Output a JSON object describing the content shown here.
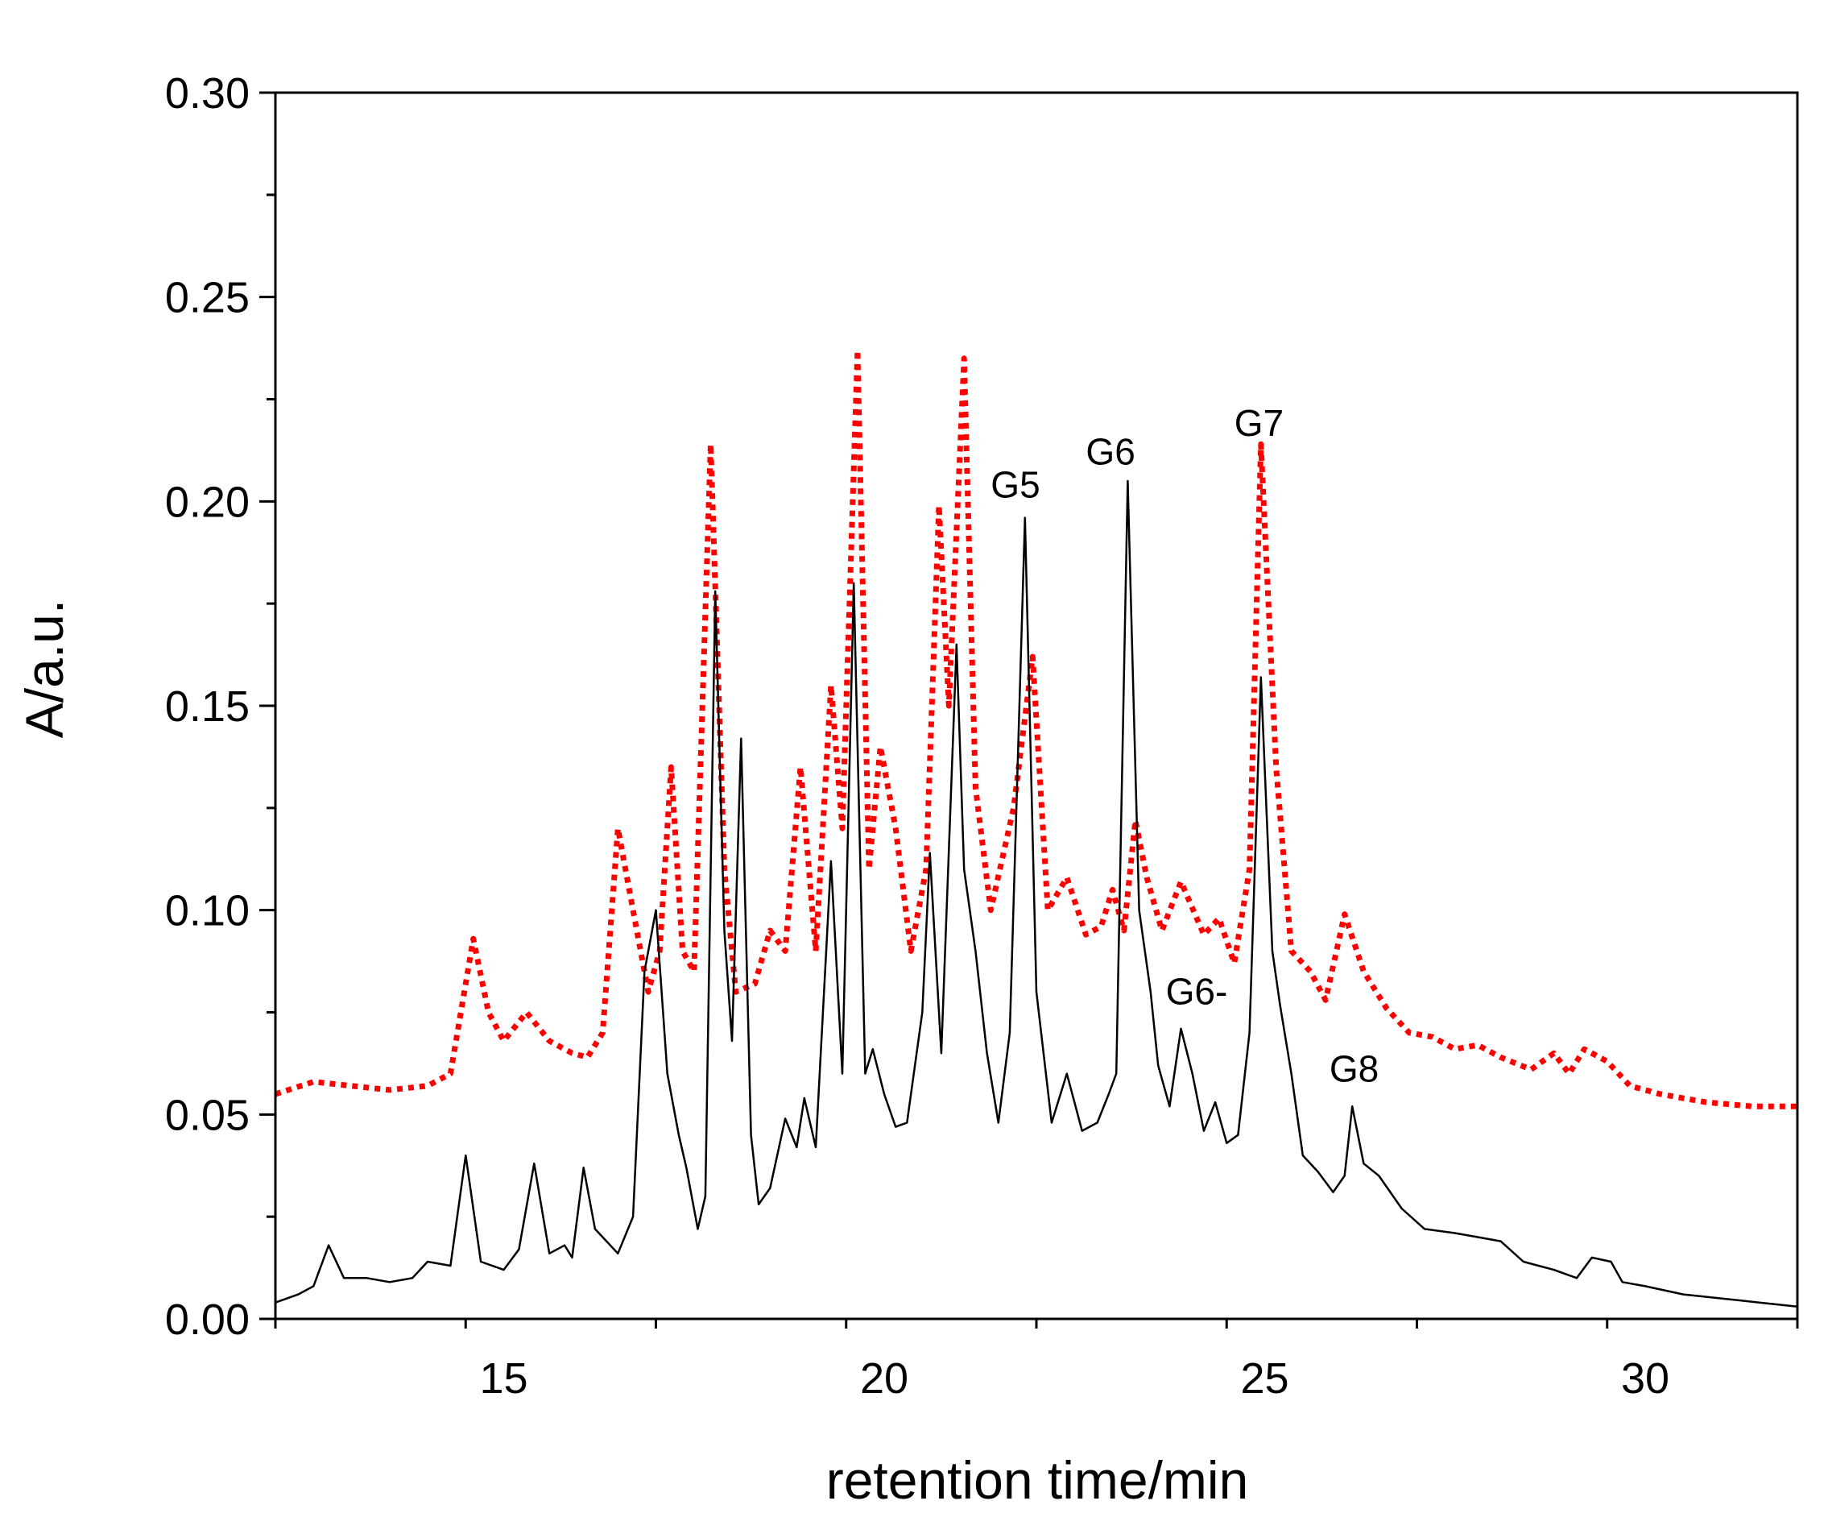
{
  "chart_data": {
    "type": "line",
    "title": "",
    "xlabel": "retention time/min",
    "ylabel": "A/a.u.",
    "xlim": [
      12,
      32
    ],
    "ylim": [
      0,
      0.3
    ],
    "x_ticks": [
      15,
      20,
      25,
      30
    ],
    "x_tick_labels": [
      "15",
      "20",
      "25",
      "30"
    ],
    "y_ticks": [
      0,
      0.05,
      0.1,
      0.15,
      0.2,
      0.25,
      0.3
    ],
    "y_tick_labels": [
      "0.00",
      "0.05",
      "0.10",
      "0.15",
      "0.20",
      "0.25",
      "0.30"
    ],
    "grid": false,
    "legend": "none",
    "series": [
      {
        "name": "black solid",
        "color": "#000000",
        "style": "solid",
        "points": [
          [
            12.0,
            0.004
          ],
          [
            12.3,
            0.006
          ],
          [
            12.5,
            0.008
          ],
          [
            12.7,
            0.018
          ],
          [
            12.9,
            0.01
          ],
          [
            13.2,
            0.01
          ],
          [
            13.5,
            0.009
          ],
          [
            13.8,
            0.01
          ],
          [
            14.0,
            0.014
          ],
          [
            14.3,
            0.013
          ],
          [
            14.5,
            0.04
          ],
          [
            14.7,
            0.014
          ],
          [
            15.0,
            0.012
          ],
          [
            15.2,
            0.017
          ],
          [
            15.4,
            0.038
          ],
          [
            15.6,
            0.016
          ],
          [
            15.8,
            0.018
          ],
          [
            15.9,
            0.015
          ],
          [
            16.05,
            0.037
          ],
          [
            16.2,
            0.022
          ],
          [
            16.5,
            0.016
          ],
          [
            16.7,
            0.025
          ],
          [
            16.85,
            0.085
          ],
          [
            17.0,
            0.1
          ],
          [
            17.15,
            0.06
          ],
          [
            17.3,
            0.045
          ],
          [
            17.4,
            0.037
          ],
          [
            17.55,
            0.022
          ],
          [
            17.65,
            0.03
          ],
          [
            17.78,
            0.178
          ],
          [
            17.9,
            0.095
          ],
          [
            18.0,
            0.068
          ],
          [
            18.12,
            0.142
          ],
          [
            18.25,
            0.045
          ],
          [
            18.35,
            0.028
          ],
          [
            18.5,
            0.032
          ],
          [
            18.7,
            0.049
          ],
          [
            18.85,
            0.042
          ],
          [
            18.95,
            0.054
          ],
          [
            19.1,
            0.042
          ],
          [
            19.3,
            0.112
          ],
          [
            19.45,
            0.06
          ],
          [
            19.6,
            0.18
          ],
          [
            19.75,
            0.06
          ],
          [
            19.85,
            0.066
          ],
          [
            20.0,
            0.055
          ],
          [
            20.15,
            0.047
          ],
          [
            20.3,
            0.048
          ],
          [
            20.5,
            0.075
          ],
          [
            20.6,
            0.114
          ],
          [
            20.75,
            0.065
          ],
          [
            20.95,
            0.165
          ],
          [
            21.05,
            0.11
          ],
          [
            21.2,
            0.09
          ],
          [
            21.35,
            0.065
          ],
          [
            21.5,
            0.048
          ],
          [
            21.65,
            0.07
          ],
          [
            21.85,
            0.196
          ],
          [
            22.0,
            0.08
          ],
          [
            22.2,
            0.048
          ],
          [
            22.4,
            0.06
          ],
          [
            22.6,
            0.046
          ],
          [
            22.8,
            0.048
          ],
          [
            22.95,
            0.055
          ],
          [
            23.05,
            0.06
          ],
          [
            23.2,
            0.205
          ],
          [
            23.35,
            0.1
          ],
          [
            23.5,
            0.08
          ],
          [
            23.6,
            0.062
          ],
          [
            23.75,
            0.052
          ],
          [
            23.9,
            0.071
          ],
          [
            24.05,
            0.06
          ],
          [
            24.2,
            0.046
          ],
          [
            24.35,
            0.053
          ],
          [
            24.5,
            0.043
          ],
          [
            24.65,
            0.045
          ],
          [
            24.8,
            0.07
          ],
          [
            24.95,
            0.157
          ],
          [
            25.1,
            0.09
          ],
          [
            25.2,
            0.077
          ],
          [
            25.35,
            0.06
          ],
          [
            25.5,
            0.04
          ],
          [
            25.7,
            0.036
          ],
          [
            25.9,
            0.031
          ],
          [
            26.05,
            0.035
          ],
          [
            26.15,
            0.052
          ],
          [
            26.3,
            0.038
          ],
          [
            26.5,
            0.035
          ],
          [
            26.8,
            0.027
          ],
          [
            27.1,
            0.022
          ],
          [
            27.5,
            0.021
          ],
          [
            27.8,
            0.02
          ],
          [
            28.1,
            0.019
          ],
          [
            28.4,
            0.014
          ],
          [
            28.8,
            0.012
          ],
          [
            29.1,
            0.01
          ],
          [
            29.3,
            0.015
          ],
          [
            29.55,
            0.014
          ],
          [
            29.7,
            0.009
          ],
          [
            30.0,
            0.008
          ],
          [
            30.5,
            0.006
          ],
          [
            31.0,
            0.005
          ],
          [
            31.5,
            0.004
          ],
          [
            32.0,
            0.003
          ]
        ]
      },
      {
        "name": "red dotted",
        "color": "#ff0000",
        "style": "dotted",
        "points": [
          [
            12.0,
            0.055
          ],
          [
            12.5,
            0.058
          ],
          [
            13.0,
            0.057
          ],
          [
            13.5,
            0.056
          ],
          [
            14.0,
            0.057
          ],
          [
            14.3,
            0.06
          ],
          [
            14.6,
            0.093
          ],
          [
            14.8,
            0.075
          ],
          [
            15.0,
            0.068
          ],
          [
            15.3,
            0.075
          ],
          [
            15.6,
            0.068
          ],
          [
            15.9,
            0.065
          ],
          [
            16.1,
            0.064
          ],
          [
            16.3,
            0.07
          ],
          [
            16.5,
            0.12
          ],
          [
            16.7,
            0.1
          ],
          [
            16.9,
            0.08
          ],
          [
            17.05,
            0.09
          ],
          [
            17.2,
            0.135
          ],
          [
            17.35,
            0.09
          ],
          [
            17.5,
            0.085
          ],
          [
            17.72,
            0.214
          ],
          [
            17.9,
            0.11
          ],
          [
            18.05,
            0.08
          ],
          [
            18.3,
            0.082
          ],
          [
            18.5,
            0.095
          ],
          [
            18.7,
            0.09
          ],
          [
            18.9,
            0.135
          ],
          [
            19.1,
            0.09
          ],
          [
            19.3,
            0.155
          ],
          [
            19.45,
            0.12
          ],
          [
            19.65,
            0.237
          ],
          [
            19.8,
            0.11
          ],
          [
            19.95,
            0.14
          ],
          [
            20.15,
            0.12
          ],
          [
            20.35,
            0.09
          ],
          [
            20.55,
            0.11
          ],
          [
            20.72,
            0.199
          ],
          [
            20.85,
            0.15
          ],
          [
            21.05,
            0.235
          ],
          [
            21.2,
            0.13
          ],
          [
            21.4,
            0.1
          ],
          [
            21.7,
            0.125
          ],
          [
            21.95,
            0.162
          ],
          [
            22.15,
            0.1
          ],
          [
            22.4,
            0.108
          ],
          [
            22.65,
            0.094
          ],
          [
            22.85,
            0.096
          ],
          [
            23.0,
            0.105
          ],
          [
            23.15,
            0.095
          ],
          [
            23.3,
            0.122
          ],
          [
            23.45,
            0.108
          ],
          [
            23.65,
            0.095
          ],
          [
            23.9,
            0.107
          ],
          [
            24.2,
            0.094
          ],
          [
            24.4,
            0.098
          ],
          [
            24.6,
            0.087
          ],
          [
            24.8,
            0.11
          ],
          [
            24.95,
            0.214
          ],
          [
            25.15,
            0.135
          ],
          [
            25.35,
            0.09
          ],
          [
            25.6,
            0.085
          ],
          [
            25.8,
            0.078
          ],
          [
            26.05,
            0.099
          ],
          [
            26.3,
            0.085
          ],
          [
            26.6,
            0.076
          ],
          [
            26.9,
            0.07
          ],
          [
            27.2,
            0.069
          ],
          [
            27.5,
            0.066
          ],
          [
            27.8,
            0.067
          ],
          [
            28.1,
            0.064
          ],
          [
            28.5,
            0.061
          ],
          [
            28.8,
            0.065
          ],
          [
            29.0,
            0.06
          ],
          [
            29.2,
            0.066
          ],
          [
            29.5,
            0.063
          ],
          [
            29.8,
            0.057
          ],
          [
            30.2,
            0.055
          ],
          [
            30.8,
            0.053
          ],
          [
            31.4,
            0.052
          ],
          [
            32.0,
            0.052
          ]
        ]
      }
    ],
    "annotations": [
      {
        "text": "G5",
        "x": 21.4,
        "y": 0.201
      },
      {
        "text": "G6",
        "x": 22.65,
        "y": 0.209
      },
      {
        "text": "G7",
        "x": 24.6,
        "y": 0.216
      },
      {
        "text": "G6-",
        "x": 23.7,
        "y": 0.077
      },
      {
        "text": "G8",
        "x": 25.85,
        "y": 0.058
      }
    ]
  }
}
